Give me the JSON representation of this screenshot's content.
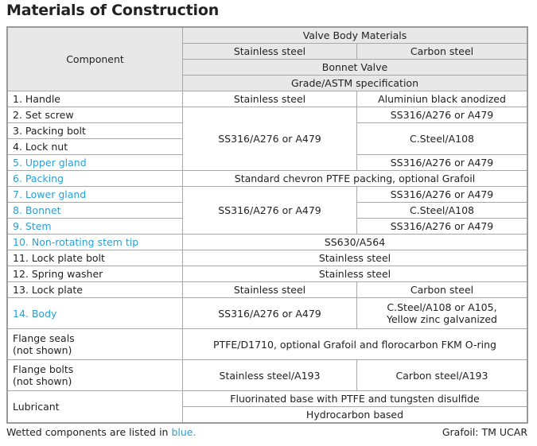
{
  "title": "Materials of Construction",
  "header": {
    "component": "Component",
    "valve_body_materials": "Valve Body Materials",
    "stainless_steel": "Stainless steel",
    "carbon_steel": "Carbon steel",
    "bonnet_valve": "Bonnet Valve",
    "grade_spec": "Grade/ASTM specification"
  },
  "rows": {
    "r1": {
      "name": "1. Handle",
      "ss": "Stainless steel",
      "cs": "Aluminiun black anodized"
    },
    "r2": {
      "name": "2. Set screw",
      "ss": "SS316/A276 or A479",
      "cs": "SS316/A276 or A479"
    },
    "r3": {
      "name": "3. Packing bolt",
      "cs": "C.Steel/A108"
    },
    "r4": {
      "name": "4. Lock nut"
    },
    "r5": {
      "name": "5. Upper gland",
      "cs": "SS316/A276 or A479"
    },
    "r6": {
      "name": "6. Packing",
      "both": "Standard chevron PTFE packing, optional Grafoil"
    },
    "r7": {
      "name": "7. Lower gland",
      "ss": "SS316/A276 or A479",
      "cs": "SS316/A276 or A479"
    },
    "r8": {
      "name": "8. Bonnet",
      "cs": "C.Steel/A108"
    },
    "r9": {
      "name": "9. Stem",
      "cs": "SS316/A276 or A479"
    },
    "r10": {
      "name": "10. Non-rotating stem tip",
      "both": "SS630/A564"
    },
    "r11": {
      "name": "11. Lock plate bolt",
      "both": "Stainless steel"
    },
    "r12": {
      "name": "12. Spring washer",
      "both": "Stainless steel"
    },
    "r13": {
      "name": "13. Lock plate",
      "ss": "Stainless steel",
      "cs": "Carbon steel"
    },
    "r14": {
      "name": "14. Body",
      "ss": "SS316/A276 or A479",
      "cs1": "C.Steel/A108 or A105,",
      "cs2": "Yellow zinc galvanized"
    },
    "seals": {
      "name1": "Flange seals",
      "name2": "(not shown)",
      "both": "PTFE/D1710, optional Grafoil and florocarbon FKM O-ring"
    },
    "bolts": {
      "name1": "Flange bolts",
      "name2": "(not shown)",
      "ss": "Stainless steel/A193",
      "cs": "Carbon steel/A193"
    },
    "lube": {
      "name": "Lubricant",
      "a": "Fluorinated base with PTFE and tungsten disulfide",
      "b": "Hydrocarbon based"
    }
  },
  "footer": {
    "note": "Wetted components are listed in ",
    "note_blue": "blue.",
    "trademark": "Grafoil: TM UCAR"
  },
  "colors": {
    "wetted": "#2a9fd6"
  }
}
